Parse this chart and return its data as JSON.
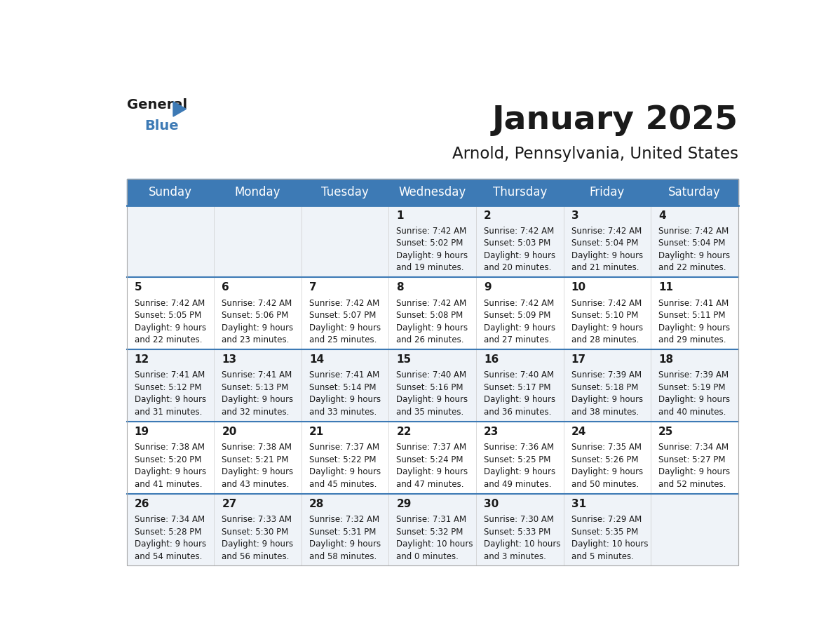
{
  "title": "January 2025",
  "subtitle": "Arnold, Pennsylvania, United States",
  "header_bg_color": "#3d7ab5",
  "header_text_color": "#ffffff",
  "cell_bg_even": "#eff3f8",
  "cell_bg_odd": "#ffffff",
  "separator_color": "#3d7ab5",
  "days_of_week": [
    "Sunday",
    "Monday",
    "Tuesday",
    "Wednesday",
    "Thursday",
    "Friday",
    "Saturday"
  ],
  "calendar": [
    [
      {
        "day": null,
        "sunrise": null,
        "sunset": null,
        "daylight": null
      },
      {
        "day": null,
        "sunrise": null,
        "sunset": null,
        "daylight": null
      },
      {
        "day": null,
        "sunrise": null,
        "sunset": null,
        "daylight": null
      },
      {
        "day": 1,
        "sunrise": "7:42 AM",
        "sunset": "5:02 PM",
        "daylight": "9 hours\nand 19 minutes."
      },
      {
        "day": 2,
        "sunrise": "7:42 AM",
        "sunset": "5:03 PM",
        "daylight": "9 hours\nand 20 minutes."
      },
      {
        "day": 3,
        "sunrise": "7:42 AM",
        "sunset": "5:04 PM",
        "daylight": "9 hours\nand 21 minutes."
      },
      {
        "day": 4,
        "sunrise": "7:42 AM",
        "sunset": "5:04 PM",
        "daylight": "9 hours\nand 22 minutes."
      }
    ],
    [
      {
        "day": 5,
        "sunrise": "7:42 AM",
        "sunset": "5:05 PM",
        "daylight": "9 hours\nand 22 minutes."
      },
      {
        "day": 6,
        "sunrise": "7:42 AM",
        "sunset": "5:06 PM",
        "daylight": "9 hours\nand 23 minutes."
      },
      {
        "day": 7,
        "sunrise": "7:42 AM",
        "sunset": "5:07 PM",
        "daylight": "9 hours\nand 25 minutes."
      },
      {
        "day": 8,
        "sunrise": "7:42 AM",
        "sunset": "5:08 PM",
        "daylight": "9 hours\nand 26 minutes."
      },
      {
        "day": 9,
        "sunrise": "7:42 AM",
        "sunset": "5:09 PM",
        "daylight": "9 hours\nand 27 minutes."
      },
      {
        "day": 10,
        "sunrise": "7:42 AM",
        "sunset": "5:10 PM",
        "daylight": "9 hours\nand 28 minutes."
      },
      {
        "day": 11,
        "sunrise": "7:41 AM",
        "sunset": "5:11 PM",
        "daylight": "9 hours\nand 29 minutes."
      }
    ],
    [
      {
        "day": 12,
        "sunrise": "7:41 AM",
        "sunset": "5:12 PM",
        "daylight": "9 hours\nand 31 minutes."
      },
      {
        "day": 13,
        "sunrise": "7:41 AM",
        "sunset": "5:13 PM",
        "daylight": "9 hours\nand 32 minutes."
      },
      {
        "day": 14,
        "sunrise": "7:41 AM",
        "sunset": "5:14 PM",
        "daylight": "9 hours\nand 33 minutes."
      },
      {
        "day": 15,
        "sunrise": "7:40 AM",
        "sunset": "5:16 PM",
        "daylight": "9 hours\nand 35 minutes."
      },
      {
        "day": 16,
        "sunrise": "7:40 AM",
        "sunset": "5:17 PM",
        "daylight": "9 hours\nand 36 minutes."
      },
      {
        "day": 17,
        "sunrise": "7:39 AM",
        "sunset": "5:18 PM",
        "daylight": "9 hours\nand 38 minutes."
      },
      {
        "day": 18,
        "sunrise": "7:39 AM",
        "sunset": "5:19 PM",
        "daylight": "9 hours\nand 40 minutes."
      }
    ],
    [
      {
        "day": 19,
        "sunrise": "7:38 AM",
        "sunset": "5:20 PM",
        "daylight": "9 hours\nand 41 minutes."
      },
      {
        "day": 20,
        "sunrise": "7:38 AM",
        "sunset": "5:21 PM",
        "daylight": "9 hours\nand 43 minutes."
      },
      {
        "day": 21,
        "sunrise": "7:37 AM",
        "sunset": "5:22 PM",
        "daylight": "9 hours\nand 45 minutes."
      },
      {
        "day": 22,
        "sunrise": "7:37 AM",
        "sunset": "5:24 PM",
        "daylight": "9 hours\nand 47 minutes."
      },
      {
        "day": 23,
        "sunrise": "7:36 AM",
        "sunset": "5:25 PM",
        "daylight": "9 hours\nand 49 minutes."
      },
      {
        "day": 24,
        "sunrise": "7:35 AM",
        "sunset": "5:26 PM",
        "daylight": "9 hours\nand 50 minutes."
      },
      {
        "day": 25,
        "sunrise": "7:34 AM",
        "sunset": "5:27 PM",
        "daylight": "9 hours\nand 52 minutes."
      }
    ],
    [
      {
        "day": 26,
        "sunrise": "7:34 AM",
        "sunset": "5:28 PM",
        "daylight": "9 hours\nand 54 minutes."
      },
      {
        "day": 27,
        "sunrise": "7:33 AM",
        "sunset": "5:30 PM",
        "daylight": "9 hours\nand 56 minutes."
      },
      {
        "day": 28,
        "sunrise": "7:32 AM",
        "sunset": "5:31 PM",
        "daylight": "9 hours\nand 58 minutes."
      },
      {
        "day": 29,
        "sunrise": "7:31 AM",
        "sunset": "5:32 PM",
        "daylight": "10 hours\nand 0 minutes."
      },
      {
        "day": 30,
        "sunrise": "7:30 AM",
        "sunset": "5:33 PM",
        "daylight": "10 hours\nand 3 minutes."
      },
      {
        "day": 31,
        "sunrise": "7:29 AM",
        "sunset": "5:35 PM",
        "daylight": "10 hours\nand 5 minutes."
      },
      {
        "day": null,
        "sunrise": null,
        "sunset": null,
        "daylight": null
      }
    ]
  ]
}
